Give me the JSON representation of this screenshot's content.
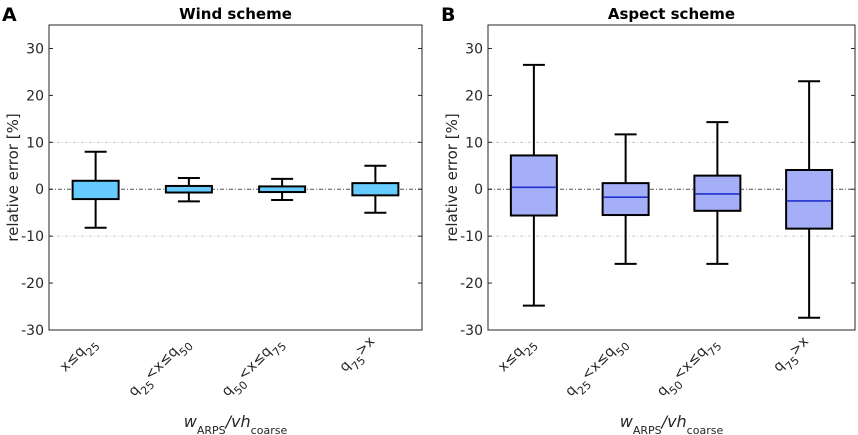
{
  "colors": {
    "wind_box_fill": "#66ccff",
    "wind_median": "#66ccff",
    "aspect_box_fill": "#a5aff7",
    "aspect_median": "#2233cc",
    "edge": "#000000",
    "grid": "#bfbfbf"
  },
  "chart_data": [
    {
      "type": "box",
      "panel_label": "A",
      "title": "Wind scheme",
      "ylabel": "relative error [%]",
      "xlabel": {
        "italic": "w",
        "sub1": "ARPS",
        "mid": "/vh",
        "sub2": "coarse"
      },
      "ylim": [
        -30,
        35
      ],
      "yticks": [
        -30,
        -20,
        -10,
        0,
        10,
        20,
        30
      ],
      "gridlines": [
        -10,
        0,
        10
      ],
      "categories": [
        [
          {
            "t": "x≤q"
          },
          {
            "t": "25",
            "sub": true
          }
        ],
        [
          {
            "t": "q"
          },
          {
            "t": "25",
            "sub": true
          },
          {
            "t": "<x≤q"
          },
          {
            "t": "50",
            "sub": true
          }
        ],
        [
          {
            "t": "q"
          },
          {
            "t": "50",
            "sub": true
          },
          {
            "t": "<x≤q"
          },
          {
            "t": "75",
            "sub": true
          }
        ],
        [
          {
            "t": "q"
          },
          {
            "t": "75",
            "sub": true
          },
          {
            "t": ">x"
          }
        ]
      ],
      "boxes": [
        {
          "whisker_low": -8.2,
          "q1": -2.1,
          "median": 0.0,
          "q3": 1.8,
          "whisker_high": 8.0
        },
        {
          "whisker_low": -2.6,
          "q1": -0.7,
          "median": 0.0,
          "q3": 0.7,
          "whisker_high": 2.4
        },
        {
          "whisker_low": -2.3,
          "q1": -0.6,
          "median": 0.0,
          "q3": 0.6,
          "whisker_high": 2.2
        },
        {
          "whisker_low": -5.0,
          "q1": -1.3,
          "median": 0.0,
          "q3": 1.3,
          "whisker_high": 5.0
        }
      ]
    },
    {
      "type": "box",
      "panel_label": "B",
      "title": "Aspect scheme",
      "ylabel": "relative error [%]",
      "xlabel": {
        "italic": "w",
        "sub1": "ARPS",
        "mid": "/vh",
        "sub2": "coarse"
      },
      "ylim": [
        -30,
        35
      ],
      "yticks": [
        -30,
        -20,
        -10,
        0,
        10,
        20,
        30
      ],
      "gridlines": [
        -10,
        0,
        10
      ],
      "categories": [
        [
          {
            "t": "x≤q"
          },
          {
            "t": "25",
            "sub": true
          }
        ],
        [
          {
            "t": "q"
          },
          {
            "t": "25",
            "sub": true
          },
          {
            "t": "<x≤q"
          },
          {
            "t": "50",
            "sub": true
          }
        ],
        [
          {
            "t": "q"
          },
          {
            "t": "50",
            "sub": true
          },
          {
            "t": "<x≤q"
          },
          {
            "t": "75",
            "sub": true
          }
        ],
        [
          {
            "t": "q"
          },
          {
            "t": "75",
            "sub": true
          },
          {
            "t": ">x"
          }
        ]
      ],
      "boxes": [
        {
          "whisker_low": -24.8,
          "q1": -5.6,
          "median": 0.4,
          "q3": 7.2,
          "whisker_high": 26.5
        },
        {
          "whisker_low": -15.9,
          "q1": -5.5,
          "median": -1.7,
          "q3": 1.3,
          "whisker_high": 11.7
        },
        {
          "whisker_low": -15.9,
          "q1": -4.6,
          "median": -1.0,
          "q3": 2.9,
          "whisker_high": 14.3
        },
        {
          "whisker_low": -27.4,
          "q1": -8.4,
          "median": -2.5,
          "q3": 4.1,
          "whisker_high": 23.0
        }
      ]
    }
  ]
}
